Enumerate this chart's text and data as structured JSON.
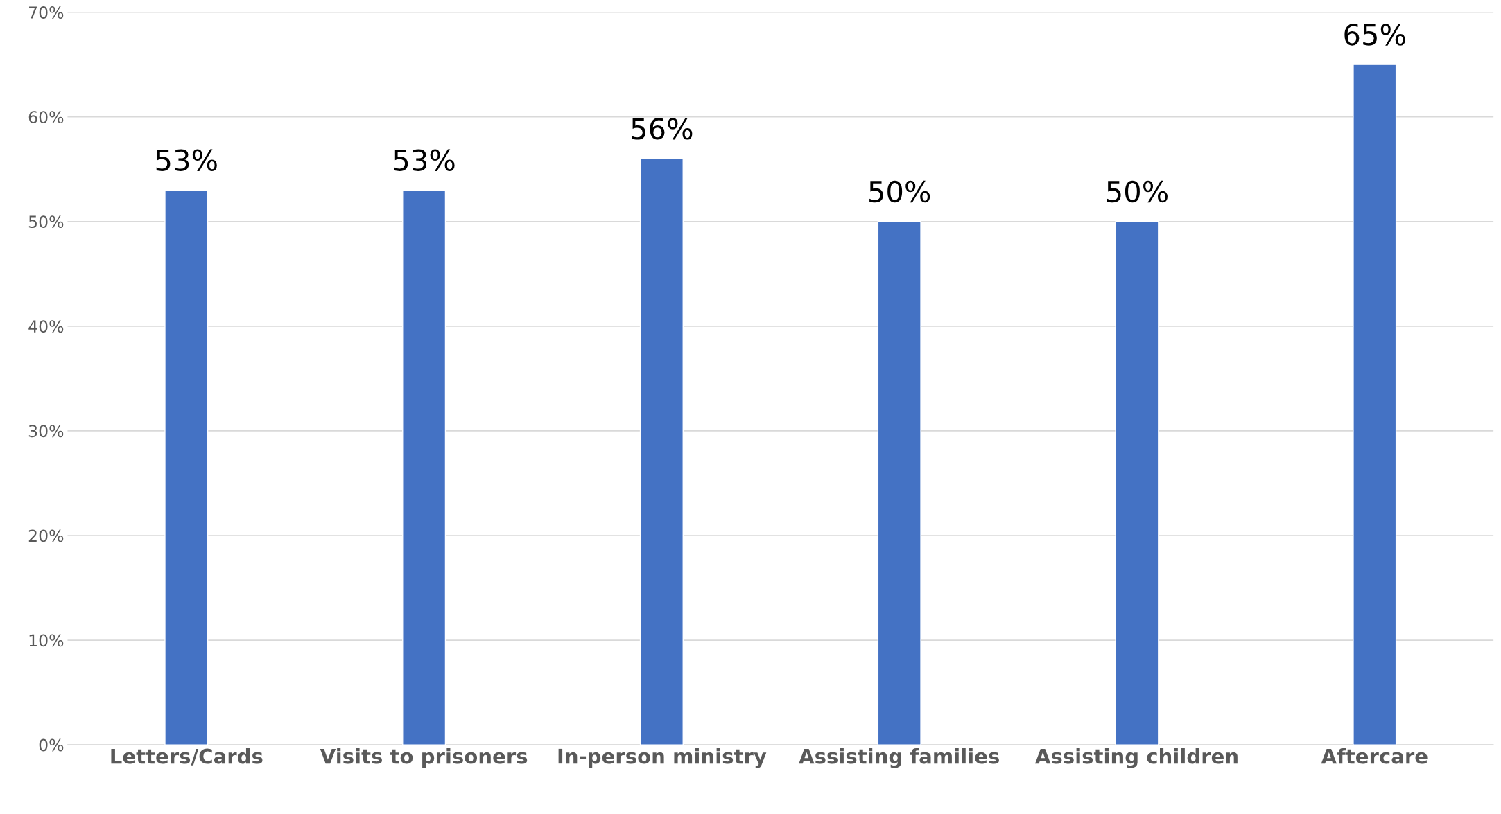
{
  "chart_data": {
    "type": "bar",
    "categories": [
      "Letters/Cards",
      "Visits to prisoners",
      "In-person ministry",
      "Assisting families",
      "Assisting children",
      "Aftercare"
    ],
    "values": [
      53,
      53,
      56,
      50,
      50,
      65
    ],
    "value_labels": [
      "53%",
      "53%",
      "56%",
      "50%",
      "50%",
      "65%"
    ],
    "color": "#4472c4",
    "ylim": [
      0,
      70
    ],
    "yticks": [
      {
        "value": 0,
        "label": "0%"
      },
      {
        "value": 10,
        "label": "10%"
      },
      {
        "value": 20,
        "label": "20%"
      },
      {
        "value": 30,
        "label": "30%"
      },
      {
        "value": 40,
        "label": "40%"
      },
      {
        "value": 50,
        "label": "50%"
      },
      {
        "value": 60,
        "label": "60%"
      },
      {
        "value": 70,
        "label": "70%"
      }
    ],
    "grid": "y",
    "legend": false
  }
}
